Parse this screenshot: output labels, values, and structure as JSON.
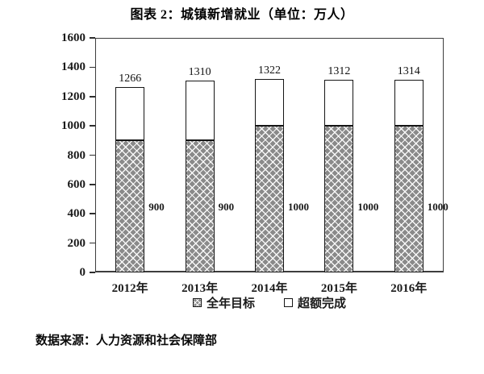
{
  "page": {
    "source_note": "数据来源：人力资源和社会保障部"
  },
  "chart_data": {
    "type": "bar",
    "stacked": true,
    "title": "图表 2：城镇新增就业（单位：万人）",
    "categories": [
      "2012年",
      "2013年",
      "2014年",
      "2015年",
      "2016年"
    ],
    "series": [
      {
        "name": "全年目标",
        "values": [
          900,
          900,
          1000,
          1000,
          1000
        ],
        "style": "hatched-gray"
      },
      {
        "name": "超额完成",
        "values": [
          366,
          410,
          322,
          312,
          314
        ],
        "style": "white"
      }
    ],
    "totals": [
      1266,
      1310,
      1322,
      1312,
      1314
    ],
    "total_labels": [
      "1266",
      "1310",
      "1322",
      "1312",
      "1314"
    ],
    "segment_labels": [
      "900",
      "900",
      "1000",
      "1000",
      "1000"
    ],
    "xlabel": "",
    "ylabel": "",
    "ylim": [
      0,
      1600
    ],
    "ytick_step": 200,
    "yticks": [
      0,
      200,
      400,
      600,
      800,
      1000,
      1200,
      1400,
      1600
    ],
    "grid": false,
    "legend_position": "bottom",
    "colors": {
      "target_fill": "#8a8a8a",
      "hatch_line": "#ffffff",
      "overflow_fill": "#ffffff",
      "outline": "#161616",
      "frame": "#3d3d3d",
      "text": "#111111"
    }
  }
}
